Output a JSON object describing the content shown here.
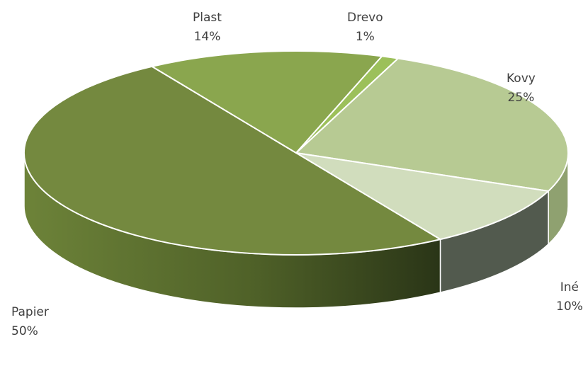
{
  "chart_data": {
    "type": "pie",
    "title": "",
    "style": "3d",
    "slices": [
      {
        "name": "Kovy",
        "value": 25,
        "label": "25%",
        "color": "#b7ca93",
        "side_color": "#8fa170"
      },
      {
        "name": "Iné",
        "value": 10,
        "label": "10%",
        "color": "#d1ddbd",
        "side_color": "#525a4e"
      },
      {
        "name": "Papier",
        "value": 50,
        "label": "50%",
        "color": "#74893f",
        "side_color": "#5a6e2e"
      },
      {
        "name": "Plast",
        "value": 14,
        "label": "14%",
        "color": "#8aa64e",
        "side_color": "#6d8539"
      },
      {
        "name": "Drevo",
        "value": 1,
        "label": "1%",
        "color": "#9cc05a",
        "side_color": "#7d9b46"
      }
    ]
  }
}
